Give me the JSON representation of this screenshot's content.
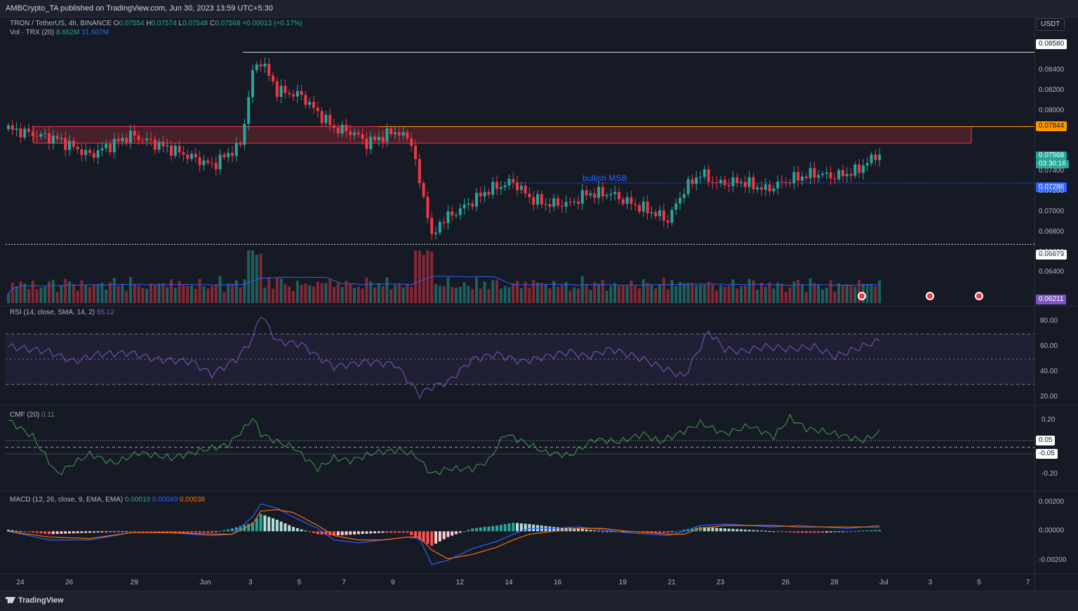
{
  "header": {
    "published": "AMBCrypto_TA published on TradingView.com, Jun 30, 2023 13:59 UTC+5:30"
  },
  "legend": {
    "symbol": "TRON / TetherUS, 4h, BINANCE",
    "o_label": "O",
    "o": "0.07554",
    "h_label": "H",
    "h": "0.07574",
    "l_label": "L",
    "l": "0.07548",
    "c_label": "C",
    "c": "0.07568",
    "change": "+0.00013 (+0.17%)",
    "vol_title": "Vol · TRX (20)",
    "vol_a": "8.662M",
    "vol_b": "31.607M",
    "rsi_title": "RSI (14, close, SMA, 14, 2)",
    "rsi_value": "65.12",
    "cmf_title": "CMF (20)",
    "cmf_value": "0.11",
    "macd_title": "MACD (12, 26, close, 9, EMA, EMA)",
    "macd_a": "0.00010",
    "macd_b": "0.00049",
    "macd_c": "0.00038"
  },
  "currency": "USDT",
  "annotation": "bullish MSB",
  "price_labels": {
    "high_line": "0.08580",
    "zone_top": "0.07844",
    "current": "0.07568",
    "countdown": "03:30:16",
    "msb_line": "0.07286",
    "low_line": "0.06679",
    "vol_label": "0.06211"
  },
  "colors": {
    "up": "#26a69a",
    "down": "#f23645",
    "zone": "#ff9800",
    "rsi": "#7e57c2",
    "cmf": "#43a047",
    "macd": "#2962ff",
    "signal": "#ff6d00"
  },
  "footer": {
    "logo": "TradingView"
  },
  "chart_data": [
    {
      "type": "line",
      "title": "TRON / TetherUS, 4h, BINANCE",
      "ylabel": "USDT",
      "ylim": [
        0.0625,
        0.0875
      ],
      "ticks": [
        "0.08400",
        "0.08200",
        "0.08000",
        "0.07400",
        "0.07200",
        "0.07000",
        "0.06800",
        "0.06600",
        "0.06400"
      ],
      "x_ticks": [
        "24",
        "26",
        "29",
        "Jun",
        "3",
        "5",
        "7",
        "9",
        "12",
        "14",
        "16",
        "19",
        "21",
        "23",
        "26",
        "28",
        "Jul",
        "3",
        "5",
        "7"
      ],
      "x_tick_bars": [
        3,
        15,
        31,
        48,
        60,
        72,
        83,
        95,
        111,
        123,
        135,
        151,
        163,
        175,
        191,
        203,
        215,
        227,
        239,
        251
      ],
      "close_keypoints": [
        [
          0,
          0.0782
        ],
        [
          12,
          0.0772
        ],
        [
          20,
          0.0756
        ],
        [
          30,
          0.0776
        ],
        [
          40,
          0.0762
        ],
        [
          50,
          0.0746
        ],
        [
          57,
          0.0766
        ],
        [
          60,
          0.0838
        ],
        [
          62,
          0.085
        ],
        [
          66,
          0.082
        ],
        [
          72,
          0.0815
        ],
        [
          76,
          0.0798
        ],
        [
          80,
          0.0783
        ],
        [
          85,
          0.0778
        ],
        [
          88,
          0.0768
        ],
        [
          95,
          0.078
        ],
        [
          99,
          0.077
        ],
        [
          101,
          0.0728
        ],
        [
          103,
          0.07
        ],
        [
          104,
          0.0672
        ],
        [
          106,
          0.069
        ],
        [
          112,
          0.0705
        ],
        [
          118,
          0.0722
        ],
        [
          124,
          0.073
        ],
        [
          128,
          0.0714
        ],
        [
          132,
          0.0708
        ],
        [
          138,
          0.0708
        ],
        [
          142,
          0.0718
        ],
        [
          148,
          0.0718
        ],
        [
          152,
          0.071
        ],
        [
          158,
          0.07
        ],
        [
          162,
          0.0692
        ],
        [
          166,
          0.0722
        ],
        [
          170,
          0.0738
        ],
        [
          174,
          0.0728
        ],
        [
          180,
          0.073
        ],
        [
          186,
          0.0722
        ],
        [
          192,
          0.0732
        ],
        [
          198,
          0.0738
        ],
        [
          203,
          0.0735
        ],
        [
          208,
          0.074
        ],
        [
          214,
          0.0758
        ]
      ],
      "levels": {
        "high": 0.0858,
        "zone_top": 0.07844,
        "zone_bottom": 0.0768,
        "msb": 0.07286,
        "low": 0.06679
      }
    },
    {
      "type": "line",
      "title": "RSI (14, close, SMA, 14, 2)",
      "ylim": [
        15,
        90
      ],
      "ticks": [
        "80.00",
        "60.00",
        "40.00",
        "20.00"
      ],
      "bands": [
        70,
        50,
        30
      ],
      "x": [
        0,
        10,
        16,
        22,
        30,
        36,
        45,
        50,
        56,
        60,
        62,
        66,
        72,
        76,
        80,
        88,
        95,
        101,
        104,
        108,
        114,
        120,
        126,
        132,
        138,
        142,
        148,
        156,
        160,
        166,
        170,
        172,
        176,
        180,
        186,
        192,
        198,
        203,
        208,
        214
      ],
      "values": [
        60,
        56,
        48,
        54,
        55,
        50,
        48,
        38,
        50,
        66,
        86,
        64,
        62,
        52,
        44,
        48,
        46,
        22,
        28,
        32,
        50,
        54,
        48,
        52,
        56,
        52,
        58,
        50,
        44,
        36,
        60,
        72,
        58,
        56,
        60,
        58,
        60,
        52,
        58,
        65
      ]
    },
    {
      "type": "line",
      "title": "CMF (20)",
      "ylim": [
        -0.3,
        0.28
      ],
      "ticks": [
        "0.20",
        "-0.20"
      ],
      "levels": [
        0.05,
        0.0,
        -0.05
      ],
      "level_labels": [
        "0.05",
        "-0.05"
      ],
      "x": [
        0,
        6,
        12,
        16,
        20,
        26,
        32,
        40,
        48,
        54,
        58,
        60,
        62,
        66,
        70,
        76,
        80,
        84,
        90,
        96,
        100,
        104,
        108,
        114,
        118,
        122,
        128,
        132,
        138,
        144,
        150,
        156,
        160,
        166,
        170,
        176,
        182,
        188,
        192,
        196,
        200,
        206,
        210,
        214
      ],
      "values": [
        0.2,
        0.08,
        -0.2,
        -0.12,
        -0.05,
        -0.12,
        -0.04,
        -0.08,
        -0.02,
        0.02,
        0.14,
        0.22,
        0.1,
        0.04,
        0.0,
        -0.16,
        -0.08,
        -0.1,
        -0.04,
        -0.02,
        -0.06,
        -0.2,
        -0.16,
        -0.16,
        -0.1,
        0.1,
        0.02,
        -0.04,
        -0.06,
        0.06,
        0.04,
        0.1,
        0.04,
        0.12,
        0.18,
        0.1,
        0.16,
        0.08,
        0.22,
        0.14,
        0.12,
        0.08,
        0.05,
        0.11
      ]
    },
    {
      "type": "bar",
      "title": "MACD (12, 26, close, 9, EMA, EMA)",
      "ylim": [
        -0.0028,
        0.0024
      ],
      "ticks": [
        "0.00200",
        "0.00000",
        "-0.00200"
      ],
      "x": [
        0,
        10,
        20,
        30,
        40,
        50,
        55,
        60,
        62,
        66,
        70,
        76,
        80,
        86,
        92,
        98,
        101,
        104,
        108,
        114,
        120,
        124,
        128,
        134,
        140,
        146,
        152,
        158,
        162,
        166,
        170,
        176,
        182,
        188,
        194,
        200,
        206,
        214
      ],
      "values": [
        0.0001,
        -0.0002,
        -0.0001,
        0.0,
        -0.0001,
        -0.0001,
        0.0002,
        0.0006,
        0.0012,
        0.0008,
        0.0003,
        -0.0002,
        -0.0003,
        -0.0002,
        -0.0001,
        -0.0001,
        -0.0006,
        -0.001,
        -0.0004,
        0.0002,
        0.0004,
        0.0006,
        0.0005,
        0.0003,
        0.0002,
        0.0,
        0.0,
        -0.0001,
        -0.0001,
        0.0001,
        0.0003,
        0.0002,
        0.0001,
        0.0,
        -0.0001,
        -0.0001,
        0.0,
        0.0001
      ],
      "macd": [
        0.0,
        -0.0006,
        -0.0006,
        -0.0001,
        -0.0001,
        -0.0003,
        -0.0002,
        0.001,
        0.0019,
        0.0016,
        0.001,
        0.0002,
        -0.0006,
        -0.0008,
        -0.0006,
        -0.0004,
        -0.0005,
        -0.0023,
        -0.002,
        -0.0012,
        -0.0007,
        -0.0002,
        0.0002,
        0.0002,
        0.0003,
        0.0001,
        -0.0001,
        -0.0002,
        -0.0003,
        0.0,
        0.0004,
        0.0005,
        0.0004,
        0.0003,
        0.0004,
        0.0003,
        0.0002,
        0.0004
      ],
      "signal": [
        0.0,
        -0.0004,
        -0.0005,
        -0.0001,
        -0.0001,
        -0.0002,
        -0.0002,
        0.0005,
        0.0014,
        0.0015,
        0.0013,
        0.0004,
        -0.0003,
        -0.0006,
        -0.0006,
        -0.0004,
        -0.0004,
        -0.0013,
        -0.0019,
        -0.0016,
        -0.0011,
        -0.0006,
        -0.0002,
        0.0,
        0.0002,
        0.0002,
        0.0,
        -0.0001,
        -0.0002,
        -0.0002,
        0.0002,
        0.0004,
        0.0004,
        0.0004,
        0.0003,
        0.0003,
        0.0003,
        0.0003
      ]
    }
  ]
}
